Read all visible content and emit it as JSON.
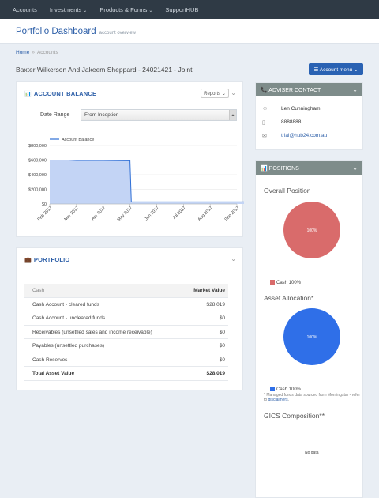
{
  "nav": {
    "items": [
      {
        "label": "Accounts",
        "caret": ""
      },
      {
        "label": "Investments",
        "caret": "⌄"
      },
      {
        "label": "Products & Forms",
        "caret": "⌄"
      },
      {
        "label": "SupportHUB",
        "caret": ""
      }
    ]
  },
  "header": {
    "title": "Portfolio Dashboard",
    "subtitle": "account overview"
  },
  "breadcrumb": {
    "home": "Home",
    "separator": "»",
    "current": "Accounts"
  },
  "account": {
    "title": "Baxter Wilkerson And Jakeem Sheppard - 24021421 - Joint"
  },
  "account_menu": {
    "label": "☰ Account menu ⌄"
  },
  "balance_panel": {
    "title": "ACCOUNT BALANCE",
    "icon": "bar-chart-icon",
    "reports_label": "Reports ⌄",
    "date_range_label": "Date Range",
    "date_range_value": "From Inception"
  },
  "chart_data": {
    "type": "area",
    "series": [
      {
        "name": "Account Balance",
        "values": [
          600000,
          600000,
          595000,
          595000,
          590000,
          30000,
          28000,
          28000,
          28000,
          28000,
          28019
        ]
      }
    ],
    "x": [
      0,
      0.7,
      1,
      2,
      3,
      3.05,
      4,
      5,
      6,
      7,
      8
    ],
    "categories": [
      "Feb 2017",
      "Mar 2017",
      "Apr 2017",
      "May 2017",
      "Jun 2017",
      "Jul 2017",
      "Aug 2017",
      "Sep 2017"
    ],
    "yticks": [
      "$0",
      "$200,000",
      "$400,000",
      "$600,000",
      "$800,000"
    ],
    "ylim": [
      0,
      800000
    ],
    "legend": "top-left",
    "colors": {
      "fill": "#c3d4f5",
      "line": "#2f6fd6"
    }
  },
  "portfolio": {
    "title": "PORTFOLIO",
    "icon": "briefcase-icon",
    "headers": [
      "Cash",
      "Market Value"
    ],
    "rows": [
      {
        "label": "Cash Account - cleared funds",
        "value": "$28,019"
      },
      {
        "label": "Cash Account - uncleared funds",
        "value": "$0"
      },
      {
        "label": "Receivables (unsettled sales and income receivable)",
        "value": "$0"
      },
      {
        "label": "Payables (unsettled purchases)",
        "value": "$0"
      },
      {
        "label": "Cash Reserves",
        "value": "$0"
      }
    ],
    "total": {
      "label": "Total Asset Value",
      "value": "$28,019"
    }
  },
  "adviser": {
    "title": "ADVISER CONTACT",
    "name": "Len Cunningham",
    "phone": "8888888",
    "email": "trial@hub24.com.au"
  },
  "positions": {
    "title": "POSITIONS",
    "overall_label": "Overall Position",
    "overall_slice": "100%",
    "overall_legend": "Cash 100%",
    "overall_color": "#d96b6b",
    "allocation_label": "Asset Allocation*",
    "allocation_slice": "100%",
    "allocation_legend": "Cash 100%",
    "allocation_color": "#2f6fe8",
    "footnote_text": "* Managed funds data sourced from Morningstar - refer to",
    "footnote_link": "disclaimers",
    "gics_label": "GICS Composition**",
    "no_data": "No data"
  }
}
